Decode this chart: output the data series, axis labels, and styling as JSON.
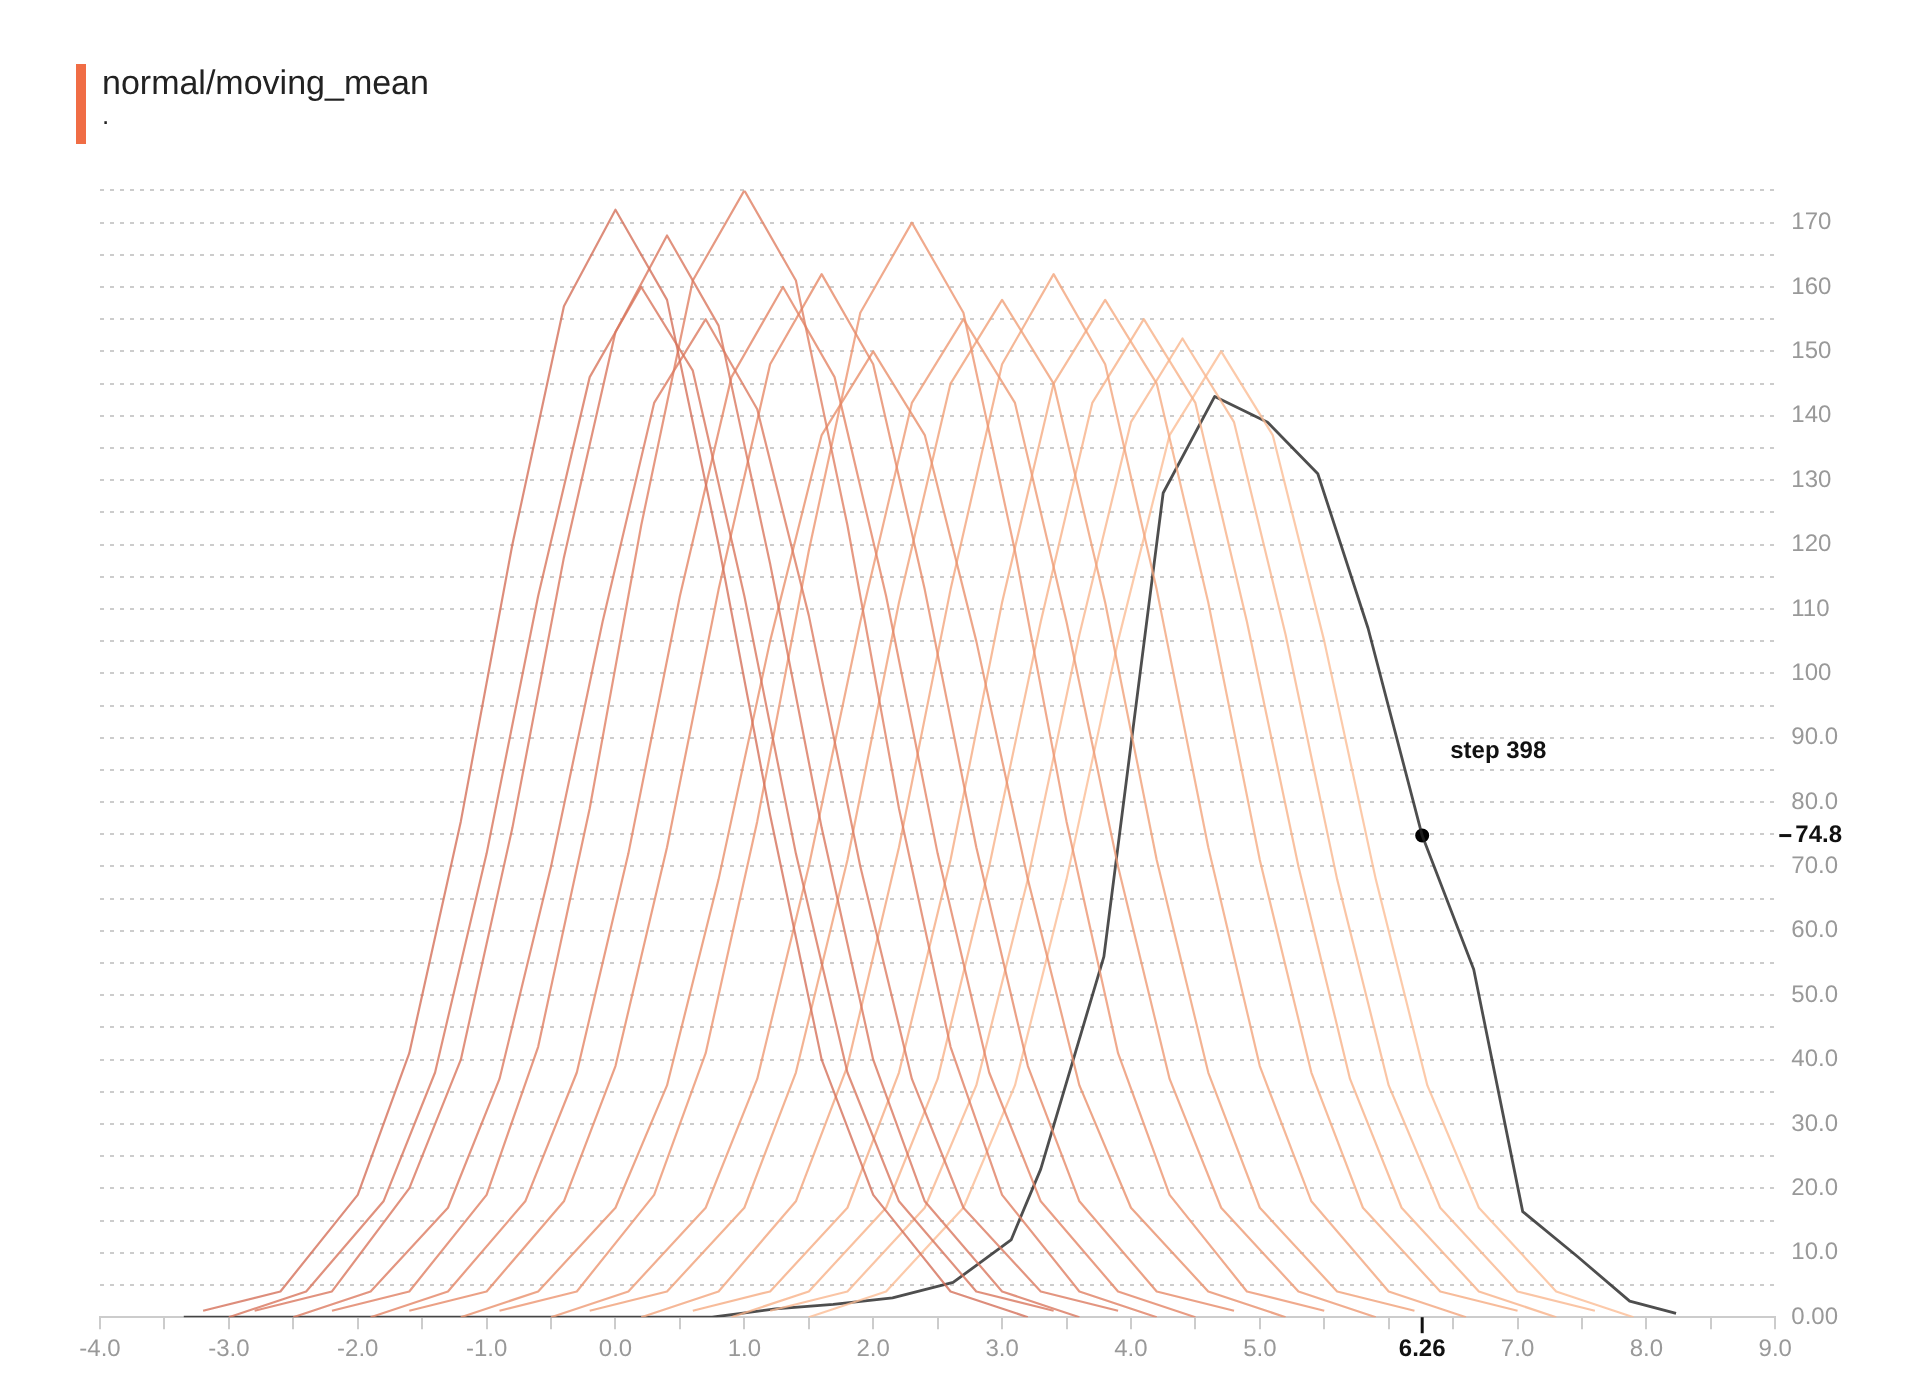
{
  "chart_data": {
    "type": "line",
    "title": "normal/moving_mean",
    "subtitle": ".",
    "xlim": [
      -4,
      9
    ],
    "xticks": [
      {
        "value": -4,
        "label": "-4.0"
      },
      {
        "value": -3.5,
        "label": null
      },
      {
        "value": -3,
        "label": "-3.0"
      },
      {
        "value": -2.5,
        "label": null
      },
      {
        "value": -2,
        "label": "-2.0"
      },
      {
        "value": -1.5,
        "label": null
      },
      {
        "value": -1,
        "label": "-1.0"
      },
      {
        "value": -0.5,
        "label": null
      },
      {
        "value": 0,
        "label": "0.0"
      },
      {
        "value": 0.5,
        "label": null
      },
      {
        "value": 1,
        "label": "1.0"
      },
      {
        "value": 1.5,
        "label": null
      },
      {
        "value": 2,
        "label": "2.0"
      },
      {
        "value": 2.5,
        "label": null
      },
      {
        "value": 3,
        "label": "3.0"
      },
      {
        "value": 3.5,
        "label": null
      },
      {
        "value": 4,
        "label": "4.0"
      },
      {
        "value": 4.5,
        "label": null
      },
      {
        "value": 5,
        "label": "5.0"
      },
      {
        "value": 5.5,
        "label": null
      },
      {
        "value": 6,
        "label": null
      },
      {
        "value": 6.5,
        "label": null
      },
      {
        "value": 7,
        "label": "7.0"
      },
      {
        "value": 7.5,
        "label": null
      },
      {
        "value": 8,
        "label": "8.0"
      },
      {
        "value": 8.5,
        "label": null
      },
      {
        "value": 9,
        "label": "9.0"
      }
    ],
    "ylim": [
      0,
      175
    ],
    "yticks": [
      {
        "value": 0,
        "label": "0.00"
      },
      {
        "value": 5,
        "label": null
      },
      {
        "value": 10,
        "label": "10.0"
      },
      {
        "value": 15,
        "label": null
      },
      {
        "value": 20,
        "label": "20.0"
      },
      {
        "value": 25,
        "label": null
      },
      {
        "value": 30,
        "label": "30.0"
      },
      {
        "value": 35,
        "label": null
      },
      {
        "value": 40,
        "label": "40.0"
      },
      {
        "value": 45,
        "label": null
      },
      {
        "value": 50,
        "label": "50.0"
      },
      {
        "value": 55,
        "label": null
      },
      {
        "value": 60,
        "label": "60.0"
      },
      {
        "value": 65,
        "label": null
      },
      {
        "value": 70,
        "label": "70.0"
      },
      {
        "value": 75,
        "label": null
      },
      {
        "value": 80,
        "label": "80.0"
      },
      {
        "value": 85,
        "label": null
      },
      {
        "value": 90,
        "label": "90.0"
      },
      {
        "value": 95,
        "label": null
      },
      100,
      {
        "value": 105,
        "label": null
      },
      110,
      {
        "value": 115,
        "label": null
      },
      120,
      {
        "value": 125,
        "label": null
      },
      130,
      {
        "value": 135,
        "label": null
      },
      140,
      {
        "value": 145,
        "label": null
      },
      150,
      {
        "value": 155,
        "label": null
      },
      160,
      {
        "value": 165,
        "label": null
      },
      170,
      {
        "value": 175,
        "label": null
      }
    ],
    "grid": "y",
    "legend": false,
    "marker": "none",
    "line_style": "solid",
    "series": [
      {
        "color": "#d4705a",
        "x": [
          -3.2,
          -2.6,
          -2.0,
          -1.6,
          -1.2,
          -0.8,
          -0.4,
          0,
          0.4,
          0.8,
          1.2,
          1.6,
          2.0,
          2.6,
          3.2
        ],
        "values": [
          1,
          4,
          19,
          41,
          77,
          120,
          157,
          172,
          158,
          120,
          78,
          40,
          19,
          4,
          0
        ]
      },
      {
        "color": "#d8755d",
        "x": [
          -3.0,
          -2.4,
          -1.8,
          -1.4,
          -1.0,
          -0.6,
          -0.2,
          0.2,
          0.6,
          1.0,
          1.4,
          1.8,
          2.2,
          2.8,
          3.4
        ],
        "values": [
          0,
          4,
          18,
          38,
          72,
          112,
          146,
          160,
          147,
          112,
          72,
          38,
          18,
          4,
          1
        ]
      },
      {
        "color": "#d9775e",
        "x": [
          -2.8,
          -2.2,
          -1.6,
          -1.2,
          -0.8,
          -0.4,
          0,
          0.4,
          0.8,
          1.2,
          1.6,
          2.0,
          2.4,
          3.0,
          3.6
        ],
        "values": [
          1,
          4,
          20,
          40,
          76,
          118,
          153,
          168,
          154,
          117,
          76,
          40,
          18,
          4,
          0
        ]
      },
      {
        "color": "#dc7b60",
        "x": [
          -2.5,
          -1.9,
          -1.3,
          -0.9,
          -0.5,
          -0.1,
          0.3,
          0.7,
          1.1,
          1.5,
          1.9,
          2.3,
          2.7,
          3.3,
          3.9
        ],
        "values": [
          0,
          4,
          17,
          37,
          70,
          108,
          142,
          155,
          141,
          109,
          70,
          37,
          17,
          4,
          1
        ]
      },
      {
        "color": "#e08063",
        "x": [
          -2.2,
          -1.6,
          -1.0,
          -0.6,
          -0.2,
          0.2,
          0.6,
          1.0,
          1.4,
          1.8,
          2.2,
          2.6,
          3.0,
          3.6,
          4.2
        ],
        "values": [
          1,
          4,
          19,
          42,
          79,
          123,
          161,
          175,
          161,
          123,
          79,
          42,
          19,
          4,
          0
        ]
      },
      {
        "color": "#e38565",
        "x": [
          -1.9,
          -1.3,
          -0.7,
          -0.3,
          0.1,
          0.5,
          0.9,
          1.3,
          1.7,
          2.1,
          2.5,
          2.9,
          3.3,
          3.9,
          4.5
        ],
        "values": [
          0,
          4,
          18,
          38,
          72,
          112,
          146,
          160,
          146,
          112,
          72,
          38,
          18,
          4,
          0
        ]
      },
      {
        "color": "#e68a68",
        "x": [
          -1.6,
          -1.0,
          -0.4,
          0,
          0.4,
          0.8,
          1.2,
          1.6,
          2.0,
          2.4,
          2.8,
          3.2,
          3.6,
          4.2,
          4.8
        ],
        "values": [
          1,
          4,
          18,
          39,
          73,
          113,
          148,
          162,
          148,
          113,
          73,
          39,
          18,
          4,
          1
        ]
      },
      {
        "color": "#e9906c",
        "x": [
          -1.2,
          -0.6,
          0,
          0.4,
          0.8,
          1.2,
          1.6,
          2.0,
          2.4,
          2.8,
          3.2,
          3.6,
          4.0,
          4.6,
          5.2
        ],
        "values": [
          0,
          4,
          17,
          36,
          68,
          105,
          137,
          150,
          137,
          105,
          68,
          36,
          17,
          4,
          0
        ]
      },
      {
        "color": "#ec9570",
        "x": [
          -0.9,
          -0.3,
          0.3,
          0.7,
          1.1,
          1.5,
          1.9,
          2.3,
          2.7,
          3.1,
          3.5,
          3.9,
          4.3,
          4.9,
          5.5
        ],
        "values": [
          1,
          4,
          19,
          41,
          77,
          119,
          156,
          170,
          156,
          119,
          77,
          41,
          19,
          4,
          1
        ]
      },
      {
        "color": "#ee9a74",
        "x": [
          -0.5,
          0.1,
          0.7,
          1.1,
          1.5,
          1.9,
          2.3,
          2.7,
          3.1,
          3.5,
          3.9,
          4.3,
          4.7,
          5.3,
          5.9
        ],
        "values": [
          0,
          4,
          17,
          37,
          70,
          108,
          142,
          155,
          142,
          108,
          70,
          37,
          17,
          4,
          0
        ]
      },
      {
        "color": "#f0a078",
        "x": [
          -0.2,
          0.4,
          1.0,
          1.4,
          1.8,
          2.2,
          2.6,
          3.0,
          3.4,
          3.8,
          4.2,
          4.6,
          5.0,
          5.6,
          6.2
        ],
        "values": [
          1,
          4,
          17,
          38,
          71,
          111,
          145,
          158,
          145,
          111,
          71,
          38,
          17,
          4,
          1
        ]
      },
      {
        "color": "#f2a57d",
        "x": [
          0.2,
          0.8,
          1.4,
          1.8,
          2.2,
          2.6,
          3.0,
          3.4,
          3.8,
          4.2,
          4.6,
          5.0,
          5.4,
          6.0,
          6.6
        ],
        "values": [
          0,
          4,
          18,
          39,
          73,
          113,
          148,
          162,
          148,
          113,
          73,
          39,
          18,
          4,
          0
        ]
      },
      {
        "color": "#f5ab82",
        "x": [
          0.6,
          1.2,
          1.8,
          2.2,
          2.6,
          3.0,
          3.4,
          3.8,
          4.2,
          4.6,
          5.0,
          5.4,
          5.8,
          6.4,
          7.0
        ],
        "values": [
          1,
          4,
          17,
          38,
          71,
          111,
          145,
          158,
          145,
          111,
          71,
          38,
          17,
          4,
          1
        ]
      },
      {
        "color": "#f7b188",
        "x": [
          0.9,
          1.5,
          2.1,
          2.5,
          2.9,
          3.3,
          3.7,
          4.1,
          4.5,
          4.9,
          5.3,
          5.7,
          6.1,
          6.7,
          7.3
        ],
        "values": [
          0,
          4,
          17,
          37,
          70,
          108,
          142,
          155,
          142,
          108,
          70,
          37,
          17,
          4,
          0
        ]
      },
      {
        "color": "#f9b78e",
        "x": [
          1.2,
          1.8,
          2.4,
          2.8,
          3.2,
          3.6,
          4.0,
          4.4,
          4.8,
          5.2,
          5.6,
          6.0,
          6.4,
          7.0,
          7.6
        ],
        "values": [
          1,
          4,
          17,
          36,
          68,
          106,
          139,
          152,
          139,
          106,
          68,
          36,
          17,
          4,
          1
        ]
      },
      {
        "color": "#fbbd95",
        "x": [
          1.5,
          2.1,
          2.7,
          3.1,
          3.5,
          3.9,
          4.3,
          4.7,
          5.1,
          5.5,
          5.9,
          6.3,
          6.7,
          7.3,
          7.9
        ],
        "values": [
          0,
          4,
          17,
          36,
          68,
          105,
          137,
          150,
          137,
          105,
          68,
          36,
          17,
          4,
          0
        ]
      },
      {
        "color": "#222222",
        "x": [
          -3.35,
          0.75,
          1.24,
          1.69,
          2.15,
          2.62,
          3.07,
          3.3,
          3.79,
          4.25,
          4.65,
          5.06,
          5.45,
          5.84,
          6.26,
          6.66,
          7.04,
          7.46,
          7.87,
          8.23
        ],
        "values": [
          0,
          0,
          1.3,
          2,
          3,
          5.4,
          12,
          23,
          56,
          128,
          143,
          139,
          131,
          107,
          74.8,
          54,
          16.4,
          9.5,
          2.5,
          0.6
        ]
      },
      {
        "type": "scatter",
        "marker": "circle",
        "color": "#000000",
        "x": [
          6.26
        ],
        "values": [
          74.8
        ]
      }
    ],
    "annotations": [
      "step 398",
      "74.8",
      "6.26"
    ]
  }
}
